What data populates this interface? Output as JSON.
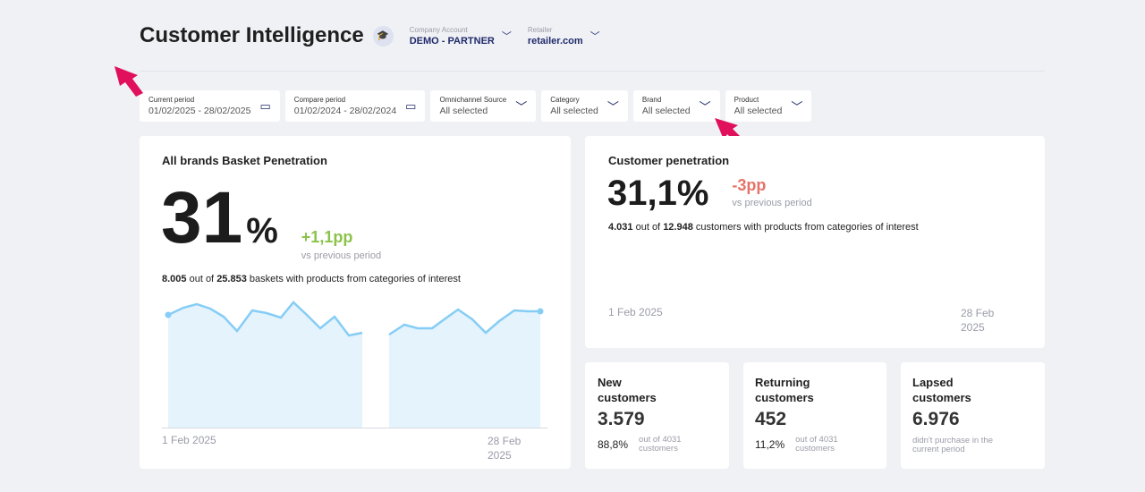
{
  "header": {
    "title": "Customer Intelligence",
    "badge_icon": "graduation-cap-icon",
    "company_label": "Company Account",
    "company_value": "DEMO - PARTNER",
    "retailer_label": "Retailer",
    "retailer_value": "retailer.com"
  },
  "filters": [
    {
      "label": "Current period",
      "value": "01/02/2025 - 28/02/2025",
      "icon": "calendar-icon"
    },
    {
      "label": "Compare period",
      "value": "01/02/2024 - 28/02/2024",
      "icon": "calendar-icon"
    },
    {
      "label": "Omnichannel Source",
      "value": "All selected",
      "icon": "chevron-down-icon"
    },
    {
      "label": "Category",
      "value": "All selected",
      "icon": "chevron-down-icon"
    },
    {
      "label": "Brand",
      "value": "All selected",
      "icon": "chevron-down-icon"
    },
    {
      "label": "Product",
      "value": "All selected",
      "icon": "chevron-down-icon"
    }
  ],
  "basket": {
    "title": "All brands Basket Penetration",
    "value": "31",
    "unit": "%",
    "delta": "+1,1pp",
    "delta_sub": "vs previous period",
    "count": "8.005",
    "of": "out of",
    "total": "25.853",
    "desc": "baskets with products from categories of interest",
    "x_start": "1 Feb 2025",
    "x_end": "28 Feb 2025",
    "delta_color": "#8bc34a"
  },
  "customer": {
    "title": "Customer penetration",
    "value": "31,1%",
    "delta": "-3pp",
    "delta_sub": "vs previous period",
    "count": "4.031",
    "of": "out of",
    "total": "12.948",
    "desc": "customers with products from categories of interest",
    "x_start": "1 Feb 2025",
    "x_end": "28 Feb 2025",
    "delta_color": "#e57368"
  },
  "segments": [
    {
      "title": "New customers",
      "value": "3.579",
      "pct": "88,8%",
      "note": "out of 4031 customers"
    },
    {
      "title": "Returning customers",
      "value": "452",
      "pct": "11,2%",
      "note": "out of 4031 customers"
    },
    {
      "title": "Lapsed customers",
      "value": "6.976",
      "pct": "",
      "note": "didn't purchase in the current period"
    }
  ],
  "colors": {
    "line": "#86cdf5",
    "fill": "#e4f3fc",
    "accent": "#1f2a6b",
    "pointer": "#e0105d"
  }
}
